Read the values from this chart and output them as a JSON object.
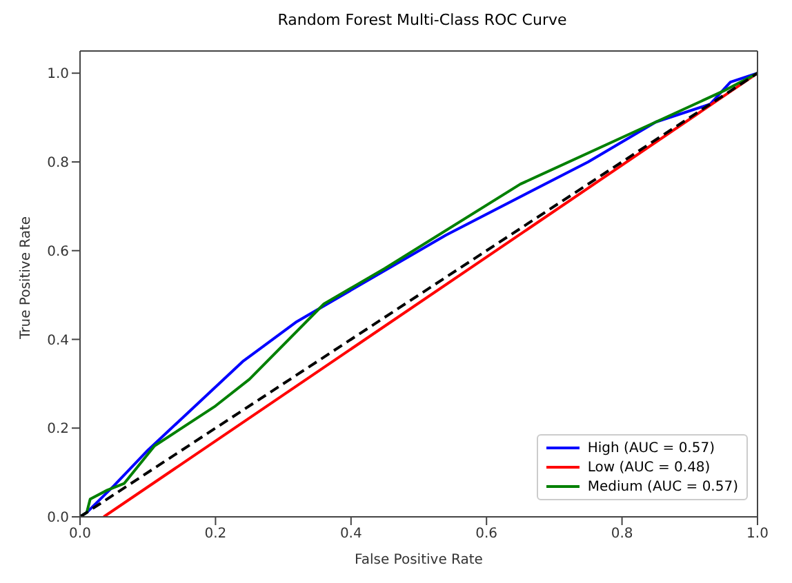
{
  "chart_data": {
    "type": "line",
    "title": "Random Forest Multi-Class ROC Curve",
    "xlabel": "False Positive Rate",
    "ylabel": "True Positive Rate",
    "xlim": [
      0,
      1
    ],
    "ylim": [
      0,
      1.05
    ],
    "xticks": [
      {
        "value": 0,
        "label": "0.0"
      },
      0.2,
      0.4,
      0.6,
      0.8,
      {
        "value": 1,
        "label": "1.0"
      }
    ],
    "yticks": [
      {
        "value": 0,
        "label": "0.0"
      },
      0.2,
      0.4,
      0.6,
      0.8,
      {
        "value": 1,
        "label": "1.0"
      }
    ],
    "series": [
      {
        "name": "High (AUC = 0.57)",
        "color": "#0000ff",
        "x": [
          0,
          0.01,
          0.05,
          0.1,
          0.24,
          0.32,
          0.54,
          0.75,
          0.85,
          0.93,
          0.96,
          0.98,
          1
        ],
        "values": [
          0,
          0.01,
          0.07,
          0.15,
          0.35,
          0.44,
          0.635,
          0.8,
          0.89,
          0.93,
          0.98,
          0.99,
          1
        ]
      },
      {
        "name": "Low (AUC = 0.48)",
        "color": "#ff0000",
        "x": [
          0.035,
          1
        ],
        "values": [
          0,
          1
        ]
      },
      {
        "name": "Medium (AUC = 0.57)",
        "color": "#008000",
        "x": [
          0,
          0.01,
          0.015,
          0.04,
          0.065,
          0.11,
          0.2,
          0.25,
          0.36,
          0.45,
          0.65,
          0.85,
          0.95,
          1
        ],
        "values": [
          0,
          0.01,
          0.04,
          0.06,
          0.075,
          0.16,
          0.25,
          0.31,
          0.48,
          0.56,
          0.75,
          0.89,
          0.96,
          1
        ]
      },
      {
        "color": "#000000",
        "line_style": "dashed",
        "x": [
          0,
          1
        ],
        "values": [
          0,
          1
        ]
      }
    ],
    "legend": "bottom right",
    "grid": false,
    "marker": "none"
  }
}
